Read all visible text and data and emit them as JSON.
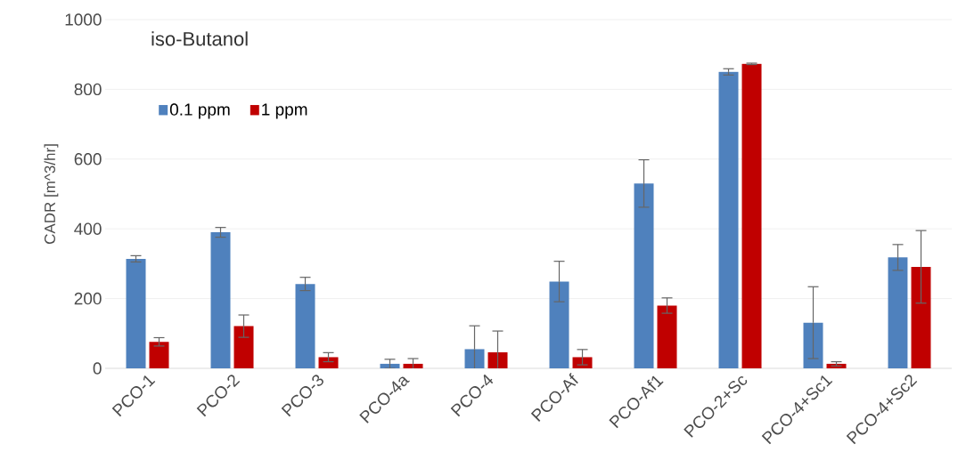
{
  "chart_data": {
    "type": "bar",
    "title": "iso-Butanol",
    "ylabel": "CADR [m^3/hr]",
    "categories": [
      "PCO-1",
      "PCO-2",
      "PCO-3",
      "PCO-4a",
      "PCO-4",
      "PCO-Af",
      "PCO-Af1",
      "PCO-2+Sc",
      "PCO-4+Sc1",
      "PCO-4+Sc2"
    ],
    "series": [
      {
        "name": "0.1 ppm",
        "color": "#4f81bd",
        "values": [
          314,
          390,
          242,
          13,
          55,
          249,
          530,
          850,
          131,
          318
        ],
        "errors": [
          9,
          14,
          19,
          13,
          67,
          58,
          68,
          9,
          103,
          37
        ]
      },
      {
        "name": "1 ppm",
        "color": "#c00000",
        "values": [
          76,
          121,
          32,
          13,
          46,
          32,
          180,
          873,
          13,
          291
        ],
        "errors": [
          12,
          32,
          13,
          15,
          61,
          22,
          22,
          2,
          6,
          104
        ]
      }
    ],
    "ylim": [
      0,
      1000
    ],
    "yticks": [
      0,
      200,
      400,
      600,
      800,
      1000
    ],
    "grid": "y",
    "legend": "top left"
  }
}
